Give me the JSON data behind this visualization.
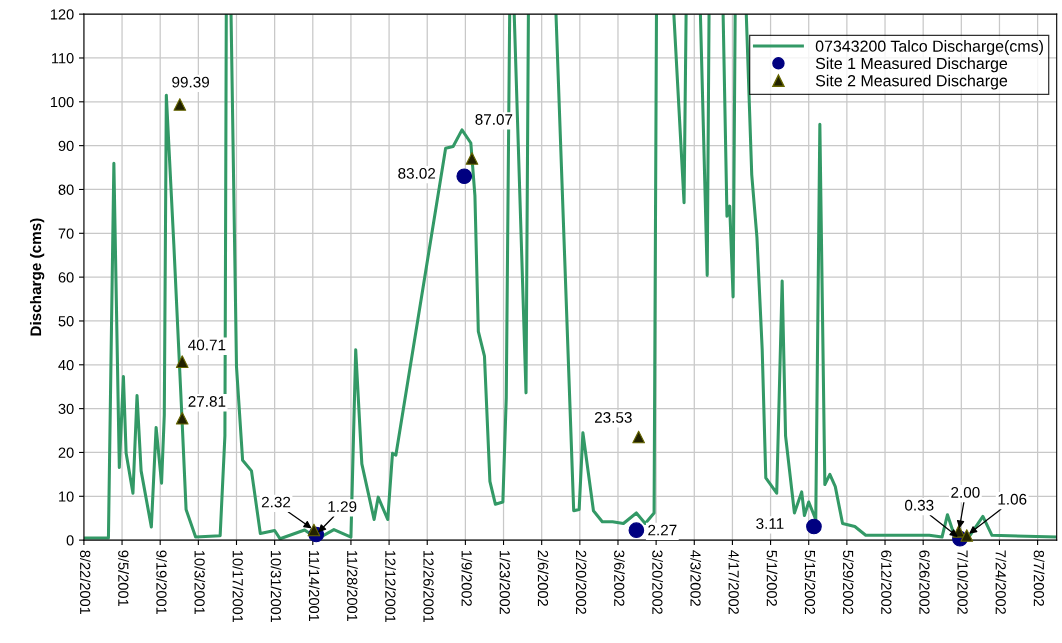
{
  "chart_data": {
    "type": "line",
    "ylabel": "Discharge (cms)",
    "xlim": [
      "2001-08-22",
      "2002-08-14"
    ],
    "ylim": [
      0,
      120
    ],
    "yticks": [
      0,
      10,
      20,
      30,
      40,
      50,
      60,
      70,
      80,
      90,
      100,
      110,
      120
    ],
    "xticks": [
      {
        "value": "2001-08-22",
        "label": "8/22/2001"
      },
      {
        "value": "2001-09-05",
        "label": "9/5/2001"
      },
      {
        "value": "2001-09-19",
        "label": "9/19/2001"
      },
      {
        "value": "2001-10-03",
        "label": "10/3/2001"
      },
      {
        "value": "2001-10-17",
        "label": "10/17/2001"
      },
      {
        "value": "2001-10-31",
        "label": "10/31/2001"
      },
      {
        "value": "2001-11-14",
        "label": "11/14/2001"
      },
      {
        "value": "2001-11-28",
        "label": "11/28/2001"
      },
      {
        "value": "2001-12-12",
        "label": "12/12/2001"
      },
      {
        "value": "2001-12-26",
        "label": "12/26/2001"
      },
      {
        "value": "2002-01-09",
        "label": "1/9/2002"
      },
      {
        "value": "2002-01-23",
        "label": "1/23/2002"
      },
      {
        "value": "2002-02-06",
        "label": "2/6/2002"
      },
      {
        "value": "2002-02-20",
        "label": "2/20/2002"
      },
      {
        "value": "2002-03-06",
        "label": "3/6/2002"
      },
      {
        "value": "2002-03-20",
        "label": "3/20/2002"
      },
      {
        "value": "2002-04-03",
        "label": "4/3/2002"
      },
      {
        "value": "2002-04-17",
        "label": "4/17/2002"
      },
      {
        "value": "2002-05-01",
        "label": "5/1/2002"
      },
      {
        "value": "2002-05-15",
        "label": "5/15/2002"
      },
      {
        "value": "2002-05-29",
        "label": "5/29/2002"
      },
      {
        "value": "2002-06-12",
        "label": "6/12/2002"
      },
      {
        "value": "2002-06-26",
        "label": "6/26/2002"
      },
      {
        "value": "2002-07-10",
        "label": "7/10/2002"
      },
      {
        "value": "2002-07-24",
        "label": "7/24/2002"
      },
      {
        "value": "2002-08-07",
        "label": "8/7/2002"
      }
    ],
    "grid": true,
    "legend": "top right",
    "series": [
      {
        "name": "07343200 Talco Discharge(cms)",
        "type": "line",
        "marker": "none",
        "color": "#339966",
        "x": [
          "2001-08-22",
          "2001-08-31",
          "2001-09-02",
          "2001-09-04",
          "2001-09-05T12:00",
          "2001-09-06T12:00",
          "2001-09-09",
          "2001-09-10T12:00",
          "2001-09-12",
          "2001-09-15T18:00",
          "2001-09-17T12:00",
          "2001-09-19T12:00",
          "2001-09-20T12:00",
          "2001-09-21T06:00",
          "2001-09-24",
          "2001-09-27",
          "2001-09-28T12:00",
          "2001-10-02",
          "2001-10-11",
          "2001-10-12T18:00",
          "2001-10-13T06:00",
          "2001-10-13T12:00",
          "2001-10-15",
          "2001-10-17",
          "2001-10-19T06:00",
          "2001-10-22T12:00",
          "2001-10-25T18:00",
          "2001-10-31",
          "2001-11-02",
          "2001-11-11",
          "2001-11-15T18:00",
          "2001-11-21T18:00",
          "2001-11-28",
          "2001-11-29T18:00",
          "2001-12-02",
          "2001-12-06T12:00",
          "2001-12-08",
          "2001-12-11T12:00",
          "2001-12-13T06:00",
          "2001-12-14T12:00",
          "2002-01-01T18:00",
          "2002-01-04T12:00",
          "2002-01-07T18:00",
          "2002-01-11",
          "2002-01-12T12:00",
          "2002-01-13T18:00",
          "2002-01-16",
          "2002-01-18",
          "2002-01-20",
          "2002-01-22T18:00",
          "2002-01-24",
          "2002-01-25T06:00",
          "2002-01-26",
          "2002-01-26T22:00",
          "2002-01-31T06:00",
          "2002-02-01T03:00",
          "2002-02-05",
          "2002-02-11T06:00",
          "2002-02-17T18:00",
          "2002-02-19T18:00",
          "2002-02-21T03:00",
          "2002-02-25",
          "2002-02-28T06:00",
          "2002-03-04",
          "2002-03-08",
          "2002-03-12T18:00",
          "2002-03-16",
          "2002-03-19T06:00",
          "2002-03-20T03:00",
          "2002-03-24",
          "2002-03-26T12:00",
          "2002-03-30T06:00",
          "2002-03-31",
          "2002-04-02",
          "2002-04-05T06:00",
          "2002-04-07T18:00",
          "2002-04-08T10:00",
          "2002-04-11",
          "2002-04-13T14:00",
          "2002-04-15",
          "2002-04-16",
          "2002-04-17T06:00",
          "2002-04-18",
          "2002-04-20",
          "2002-04-22T02:00",
          "2002-04-24T02:00",
          "2002-04-26",
          "2002-04-27T22:00",
          "2002-04-29T06:00",
          "2002-05-03T06:00",
          "2002-05-05T06:00",
          "2002-05-06T12:00",
          "2002-05-09T18:00",
          "2002-05-12T10:00",
          "2002-05-13T10:00",
          "2002-05-15",
          "2002-05-17T14:00",
          "2002-05-19T02:00",
          "2002-05-20T22:00",
          "2002-05-22T18:00",
          "2002-05-24T18:00",
          "2002-05-27T10:00",
          "2002-05-31T22:00",
          "2002-06-04T22:00",
          "2002-06-28T06:00",
          "2002-07-02T22:00",
          "2002-07-04T22:00",
          "2002-07-07T10:00",
          "2002-07-12T18:00",
          "2002-07-17T22:00",
          "2002-07-21T06:00",
          "2002-08-14"
        ],
        "values": [
          0.5,
          0.5,
          86,
          16.6,
          37.3,
          19.8,
          10.7,
          33,
          15.8,
          3,
          25.7,
          13,
          28.5,
          101.5,
          67.5,
          27.7,
          7,
          0.7,
          1,
          23.8,
          120,
          null,
          120,
          39.6,
          18.2,
          15.8,
          1.5,
          2.2,
          0.3,
          2.3,
          0.3,
          2.4,
          0.7,
          43.4,
          17.4,
          4.7,
          9.8,
          4.7,
          19.8,
          19.4,
          89.4,
          89.8,
          93.6,
          90.6,
          78.6,
          47.6,
          42,
          13.4,
          8.2,
          8.7,
          32.5,
          120,
          null,
          120,
          33.6,
          120,
          null,
          120,
          6.7,
          7,
          24.5,
          6.7,
          4.2,
          4.2,
          3.8,
          6.2,
          3.8,
          6.2,
          120,
          null,
          120,
          77,
          120,
          null,
          120,
          60.4,
          120,
          null,
          120,
          73.9,
          76.2,
          55.5,
          120,
          null,
          120,
          83.4,
          69,
          43.6,
          14.2,
          10.7,
          59.1,
          23.8,
          6.2,
          11,
          5.6,
          8.7,
          4.7,
          94.9,
          12.7,
          15,
          12.2,
          3.8,
          3.1,
          1.1,
          1.1,
          0.7,
          5.8,
          1.1,
          0.7,
          5.4,
          1.1,
          0.7
        ]
      },
      {
        "name": "Site 1 Measured Discharge",
        "type": "scatter",
        "marker": "circle",
        "color": "#000080",
        "x": [
          "2001-11-15T06:00",
          "2002-01-08T14:00",
          "2002-03-12T18:00",
          "2002-05-16T22:00",
          "2002-07-09T12:00"
        ],
        "values": [
          1.29,
          83.02,
          2.27,
          3.11,
          0.33
        ],
        "value_labels": [
          "1.29",
          "83.02",
          "2.27",
          "3.11",
          "0.33"
        ]
      },
      {
        "name": "Site 2 Measured Discharge",
        "type": "scatter",
        "marker": "triangle",
        "color": "#222200",
        "x": [
          "2001-09-26T05:00",
          "2001-09-27T02:00",
          "2001-09-27T02:00",
          "2001-11-14T10:00",
          "2002-01-11T10:00",
          "2002-03-13T14:00",
          "2002-07-09T02:00",
          "2002-07-12"
        ],
        "values": [
          99.39,
          40.71,
          27.81,
          2.32,
          87.07,
          23.53,
          2.0,
          1.06
        ],
        "value_labels": [
          "99.39",
          "40.71",
          "27.81",
          "2.32",
          "87.07",
          "23.53",
          "2.00",
          "1.06"
        ]
      }
    ]
  }
}
